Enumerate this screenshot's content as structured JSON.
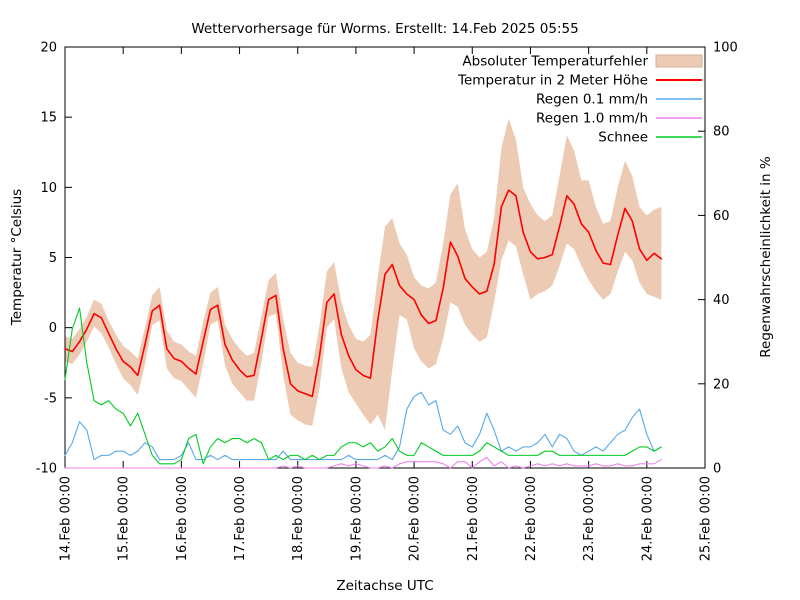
{
  "title": "Wettervorhersage für Worms. Erstellt: 14.Feb 2025 05:55",
  "axes": {
    "x_label": "Zeitachse UTC",
    "y_left_label": "Temperatur °Celsius",
    "y_right_label": "Regenwahrscheinlichkeit in %"
  },
  "chart_data": {
    "type": "line",
    "title": "Wettervorhersage für Worms. Erstellt: 14.Feb 2025 05:55",
    "xlabel": "Zeitachse UTC",
    "ylabel_left": "Temperatur °Celsius",
    "ylabel_right": "Regenwahrscheinlichkeit in %",
    "x_unit": "hours since 14.Feb 00:00 UTC",
    "x_range_hours": [
      0,
      264
    ],
    "x_ticks": [
      {
        "hour": 0,
        "label": "14.Feb 00:00"
      },
      {
        "hour": 24,
        "label": "15.Feb 00:00"
      },
      {
        "hour": 48,
        "label": "16.Feb 00:00"
      },
      {
        "hour": 72,
        "label": "17.Feb 00:00"
      },
      {
        "hour": 96,
        "label": "18.Feb 00:00"
      },
      {
        "hour": 120,
        "label": "19.Feb 00:00"
      },
      {
        "hour": 144,
        "label": "20.Feb 00:00"
      },
      {
        "hour": 168,
        "label": "21.Feb 00:00"
      },
      {
        "hour": 192,
        "label": "22.Feb 00:00"
      },
      {
        "hour": 216,
        "label": "23.Feb 00:00"
      },
      {
        "hour": 240,
        "label": "24.Feb 00:00"
      },
      {
        "hour": 264,
        "label": "25.Feb 00:00"
      }
    ],
    "y_left": {
      "range": [
        -10,
        20
      ],
      "ticks": [
        -10,
        -5,
        0,
        5,
        10,
        15,
        20
      ]
    },
    "y_right": {
      "range": [
        0,
        100
      ],
      "ticks": [
        0,
        20,
        40,
        60,
        80,
        100
      ]
    },
    "x_hours": [
      0,
      3,
      6,
      9,
      12,
      15,
      18,
      21,
      24,
      27,
      30,
      33,
      36,
      39,
      42,
      45,
      48,
      51,
      54,
      57,
      60,
      63,
      66,
      69,
      72,
      75,
      78,
      81,
      84,
      87,
      90,
      93,
      96,
      99,
      102,
      105,
      108,
      111,
      114,
      117,
      120,
      123,
      126,
      129,
      132,
      135,
      138,
      141,
      144,
      147,
      150,
      153,
      156,
      159,
      162,
      165,
      168,
      171,
      174,
      177,
      180,
      183,
      186,
      189,
      192,
      195,
      198,
      201,
      204,
      207,
      210,
      213,
      216,
      219,
      222,
      225,
      228,
      231,
      234,
      237,
      240,
      243,
      246
    ],
    "band": {
      "key": "temp-error-band",
      "name": "Absoluter Temperaturfehler",
      "axis": "left",
      "fill": "#eccab4",
      "edge": "#d9b096",
      "upper": [
        -0.6,
        -0.8,
        -0.1,
        0.8,
        2.0,
        1.7,
        0.5,
        -0.5,
        -1.3,
        -1.7,
        -2.2,
        0.0,
        2.3,
        2.9,
        -0.2,
        -1.0,
        -1.2,
        -1.7,
        -2.0,
        0.4,
        2.5,
        2.9,
        0.2,
        -0.8,
        -1.5,
        -2.0,
        -1.8,
        0.8,
        3.4,
        3.9,
        0.6,
        -1.8,
        -2.5,
        -2.7,
        -2.8,
        0.2,
        4.0,
        4.7,
        1.8,
        0.2,
        -0.8,
        -1.0,
        -0.5,
        3.6,
        7.2,
        7.8,
        6.0,
        5.2,
        3.6,
        3.0,
        2.8,
        3.2,
        6.0,
        9.5,
        10.3,
        7.0,
        5.6,
        5.0,
        5.4,
        7.8,
        12.8,
        14.9,
        13.4,
        10.0,
        8.8,
        8.0,
        7.6,
        8.0,
        10.8,
        13.7,
        12.6,
        10.5,
        10.5,
        8.6,
        7.4,
        7.6,
        10.0,
        11.9,
        10.8,
        8.6,
        8.0,
        8.4,
        8.6
      ],
      "lower": [
        -2.4,
        -2.6,
        -1.9,
        -1.0,
        0.1,
        -0.4,
        -1.4,
        -2.6,
        -3.6,
        -4.1,
        -4.8,
        -2.6,
        0.2,
        0.5,
        -2.9,
        -3.6,
        -3.8,
        -4.4,
        -5.0,
        -2.6,
        0.2,
        0.5,
        -2.7,
        -4.0,
        -4.6,
        -5.2,
        -5.2,
        -2.5,
        0.8,
        1.0,
        -3.4,
        -6.2,
        -6.6,
        -6.9,
        -7.0,
        -4.3,
        0.0,
        0.6,
        -2.9,
        -4.6,
        -5.4,
        -6.2,
        -6.9,
        -6.2,
        -7.3,
        -3.0,
        0.9,
        0.6,
        -1.5,
        -2.4,
        -2.9,
        -2.6,
        -0.8,
        1.8,
        1.5,
        0.2,
        -0.5,
        -1.0,
        -0.7,
        1.8,
        4.8,
        6.2,
        5.8,
        3.8,
        2.0,
        2.4,
        2.6,
        3.0,
        4.4,
        6.0,
        5.6,
        4.4,
        3.4,
        2.6,
        2.0,
        2.4,
        4.0,
        5.4,
        4.8,
        3.2,
        2.4,
        2.2,
        2.0
      ]
    },
    "series": [
      {
        "key": "temperature-2m",
        "name": "Temperatur in 2 Meter Höhe",
        "axis": "left",
        "color": "#fe0000",
        "width": 1.6,
        "values": [
          -1.5,
          -1.7,
          -1.0,
          -0.1,
          1.0,
          0.7,
          -0.4,
          -1.5,
          -2.4,
          -2.8,
          -3.4,
          -1.2,
          1.2,
          1.6,
          -1.5,
          -2.2,
          -2.4,
          -2.9,
          -3.3,
          -1.0,
          1.3,
          1.6,
          -1.2,
          -2.3,
          -3.0,
          -3.5,
          -3.4,
          -0.8,
          2.0,
          2.3,
          -1.5,
          -4.0,
          -4.5,
          -4.7,
          -4.9,
          -2.0,
          1.8,
          2.4,
          -0.5,
          -2.0,
          -3.0,
          -3.4,
          -3.6,
          0.5,
          3.8,
          4.5,
          3.0,
          2.4,
          2.0,
          0.9,
          0.3,
          0.5,
          2.8,
          6.1,
          5.1,
          3.5,
          2.9,
          2.4,
          2.6,
          4.5,
          8.6,
          9.8,
          9.4,
          6.8,
          5.4,
          4.9,
          5.0,
          5.2,
          7.2,
          9.4,
          8.8,
          7.4,
          6.8,
          5.5,
          4.6,
          4.5,
          6.6,
          8.5,
          7.6,
          5.6,
          4.8,
          5.3,
          4.9
        ]
      },
      {
        "key": "rain-01mmh",
        "name": "Regen 0.1 mm/h",
        "axis": "right",
        "color": "#58a8e8",
        "width": 1.1,
        "values": [
          3,
          6,
          11,
          9,
          2,
          3,
          3,
          4,
          4,
          3,
          4,
          6,
          5,
          2,
          2,
          2,
          3,
          6,
          2,
          2,
          3,
          2,
          3,
          2,
          2,
          2,
          2,
          2,
          2,
          2,
          4,
          2,
          2,
          2,
          2,
          2,
          2,
          2,
          2,
          3,
          2,
          2,
          2,
          2,
          3,
          2,
          5,
          14,
          17,
          18,
          15,
          16,
          9,
          8,
          10,
          6,
          5,
          8,
          13,
          9,
          4,
          5,
          4,
          5,
          5,
          6,
          8,
          5,
          8,
          7,
          4,
          3,
          4,
          5,
          4,
          6,
          8,
          9,
          12,
          14,
          8,
          4,
          5
        ]
      },
      {
        "key": "rain-10mmh",
        "name": "Regen 1.0 mm/h",
        "axis": "right",
        "color": "#ee82ee",
        "width": 1.1,
        "values": [
          0,
          0,
          0,
          0,
          0,
          0,
          0,
          0,
          0,
          0,
          0,
          0,
          0,
          0,
          0,
          0,
          0,
          0,
          0,
          0,
          0,
          0,
          0,
          0,
          0,
          0,
          0,
          0,
          0,
          0,
          0.5,
          0,
          0.5,
          0,
          0,
          0,
          0,
          0.5,
          1,
          0.5,
          1,
          0.5,
          0,
          0,
          0.5,
          0,
          1,
          1.5,
          1.5,
          1.5,
          1.5,
          1.5,
          1,
          0,
          1.5,
          1.5,
          0,
          1.5,
          2.5,
          0.5,
          1.5,
          0,
          0.5,
          0,
          0.5,
          1,
          0.5,
          1,
          0.5,
          1,
          0.5,
          0.5,
          0.5,
          1,
          0.5,
          0.5,
          1,
          0.5,
          0.5,
          1,
          1,
          1,
          2
        ]
      },
      {
        "key": "snow",
        "name": "Schnee",
        "axis": "right",
        "color": "#00cc22",
        "width": 1.1,
        "values": [
          21,
          33,
          38,
          25,
          16,
          15,
          16,
          14,
          13,
          10,
          13,
          8,
          3,
          1,
          1,
          1,
          2,
          7,
          8,
          1,
          5,
          7,
          6,
          7,
          7,
          6,
          7,
          6,
          2,
          3,
          2,
          3,
          3,
          2,
          3,
          2,
          3,
          3,
          5,
          6,
          6,
          5,
          6,
          4,
          5,
          7,
          4,
          3,
          3,
          6,
          5,
          4,
          3,
          3,
          3,
          3,
          3,
          4,
          6,
          5,
          4,
          3,
          3,
          3,
          3,
          3,
          4,
          4,
          3,
          3,
          3,
          3,
          3,
          3,
          3,
          3,
          3,
          3,
          4,
          5,
          5,
          4,
          5
        ]
      }
    ],
    "legend_position": "top-right-inside",
    "grid": false
  }
}
